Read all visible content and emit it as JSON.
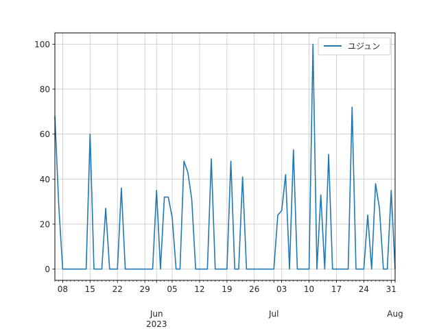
{
  "chart_data": {
    "type": "line",
    "title": "",
    "xlabel": "",
    "ylabel": "",
    "x_range": [
      "2023-05-06",
      "2023-08-01"
    ],
    "ylim": [
      -5,
      105
    ],
    "grid": true,
    "legend_position": "top-right",
    "y_ticks": [
      0,
      20,
      40,
      60,
      80,
      100
    ],
    "x_ticks": [
      {
        "date": "2023-05-08",
        "label": "08"
      },
      {
        "date": "2023-05-15",
        "label": "15"
      },
      {
        "date": "2023-05-22",
        "label": "22"
      },
      {
        "date": "2023-05-29",
        "label": "29"
      },
      {
        "date": "2023-06-01",
        "label": "Jun\n2023",
        "major": true
      },
      {
        "date": "2023-06-05",
        "label": "05"
      },
      {
        "date": "2023-06-12",
        "label": "12"
      },
      {
        "date": "2023-06-19",
        "label": "19"
      },
      {
        "date": "2023-06-26",
        "label": "26"
      },
      {
        "date": "2023-07-01",
        "label": "Jul",
        "major": true
      },
      {
        "date": "2023-07-03",
        "label": "03"
      },
      {
        "date": "2023-07-10",
        "label": "10"
      },
      {
        "date": "2023-07-17",
        "label": "17"
      },
      {
        "date": "2023-07-24",
        "label": "24"
      },
      {
        "date": "2023-07-31",
        "label": "31"
      },
      {
        "date": "2023-08-01",
        "label": "Aug",
        "major": true
      }
    ],
    "series": [
      {
        "name": "ユジュン",
        "color": "#1f77b4",
        "points": [
          [
            "2023-05-06",
            68
          ],
          [
            "2023-05-07",
            28
          ],
          [
            "2023-05-08",
            0
          ],
          [
            "2023-05-09",
            0
          ],
          [
            "2023-05-10",
            0
          ],
          [
            "2023-05-11",
            0
          ],
          [
            "2023-05-12",
            0
          ],
          [
            "2023-05-13",
            0
          ],
          [
            "2023-05-14",
            0
          ],
          [
            "2023-05-15",
            60
          ],
          [
            "2023-05-16",
            0
          ],
          [
            "2023-05-17",
            0
          ],
          [
            "2023-05-18",
            0
          ],
          [
            "2023-05-19",
            27
          ],
          [
            "2023-05-20",
            0
          ],
          [
            "2023-05-21",
            0
          ],
          [
            "2023-05-22",
            0
          ],
          [
            "2023-05-23",
            36
          ],
          [
            "2023-05-24",
            0
          ],
          [
            "2023-05-25",
            0
          ],
          [
            "2023-05-26",
            0
          ],
          [
            "2023-05-27",
            0
          ],
          [
            "2023-05-28",
            0
          ],
          [
            "2023-05-29",
            0
          ],
          [
            "2023-05-30",
            0
          ],
          [
            "2023-05-31",
            0
          ],
          [
            "2023-06-01",
            35
          ],
          [
            "2023-06-02",
            0
          ],
          [
            "2023-06-03",
            32
          ],
          [
            "2023-06-04",
            32
          ],
          [
            "2023-06-05",
            23
          ],
          [
            "2023-06-06",
            0
          ],
          [
            "2023-06-07",
            0
          ],
          [
            "2023-06-08",
            48
          ],
          [
            "2023-06-09",
            43
          ],
          [
            "2023-06-10",
            31
          ],
          [
            "2023-06-11",
            0
          ],
          [
            "2023-06-12",
            0
          ],
          [
            "2023-06-13",
            0
          ],
          [
            "2023-06-14",
            0
          ],
          [
            "2023-06-15",
            49
          ],
          [
            "2023-06-16",
            0
          ],
          [
            "2023-06-17",
            0
          ],
          [
            "2023-06-18",
            0
          ],
          [
            "2023-06-19",
            0
          ],
          [
            "2023-06-20",
            48
          ],
          [
            "2023-06-21",
            0
          ],
          [
            "2023-06-22",
            0
          ],
          [
            "2023-06-23",
            41
          ],
          [
            "2023-06-24",
            0
          ],
          [
            "2023-06-25",
            0
          ],
          [
            "2023-06-26",
            0
          ],
          [
            "2023-06-27",
            0
          ],
          [
            "2023-06-28",
            0
          ],
          [
            "2023-06-29",
            0
          ],
          [
            "2023-06-30",
            0
          ],
          [
            "2023-07-01",
            0
          ],
          [
            "2023-07-02",
            24
          ],
          [
            "2023-07-03",
            26
          ],
          [
            "2023-07-04",
            42
          ],
          [
            "2023-07-05",
            0
          ],
          [
            "2023-07-06",
            53
          ],
          [
            "2023-07-07",
            0
          ],
          [
            "2023-07-08",
            0
          ],
          [
            "2023-07-09",
            0
          ],
          [
            "2023-07-10",
            0
          ],
          [
            "2023-07-11",
            100
          ],
          [
            "2023-07-12",
            0
          ],
          [
            "2023-07-13",
            33
          ],
          [
            "2023-07-14",
            0
          ],
          [
            "2023-07-15",
            51
          ],
          [
            "2023-07-16",
            0
          ],
          [
            "2023-07-17",
            0
          ],
          [
            "2023-07-18",
            0
          ],
          [
            "2023-07-19",
            0
          ],
          [
            "2023-07-20",
            0
          ],
          [
            "2023-07-21",
            72
          ],
          [
            "2023-07-22",
            0
          ],
          [
            "2023-07-23",
            0
          ],
          [
            "2023-07-24",
            0
          ],
          [
            "2023-07-25",
            24
          ],
          [
            "2023-07-26",
            0
          ],
          [
            "2023-07-27",
            38
          ],
          [
            "2023-07-28",
            27
          ],
          [
            "2023-07-29",
            0
          ],
          [
            "2023-07-30",
            0
          ],
          [
            "2023-07-31",
            35
          ],
          [
            "2023-08-01",
            0
          ]
        ]
      }
    ]
  }
}
